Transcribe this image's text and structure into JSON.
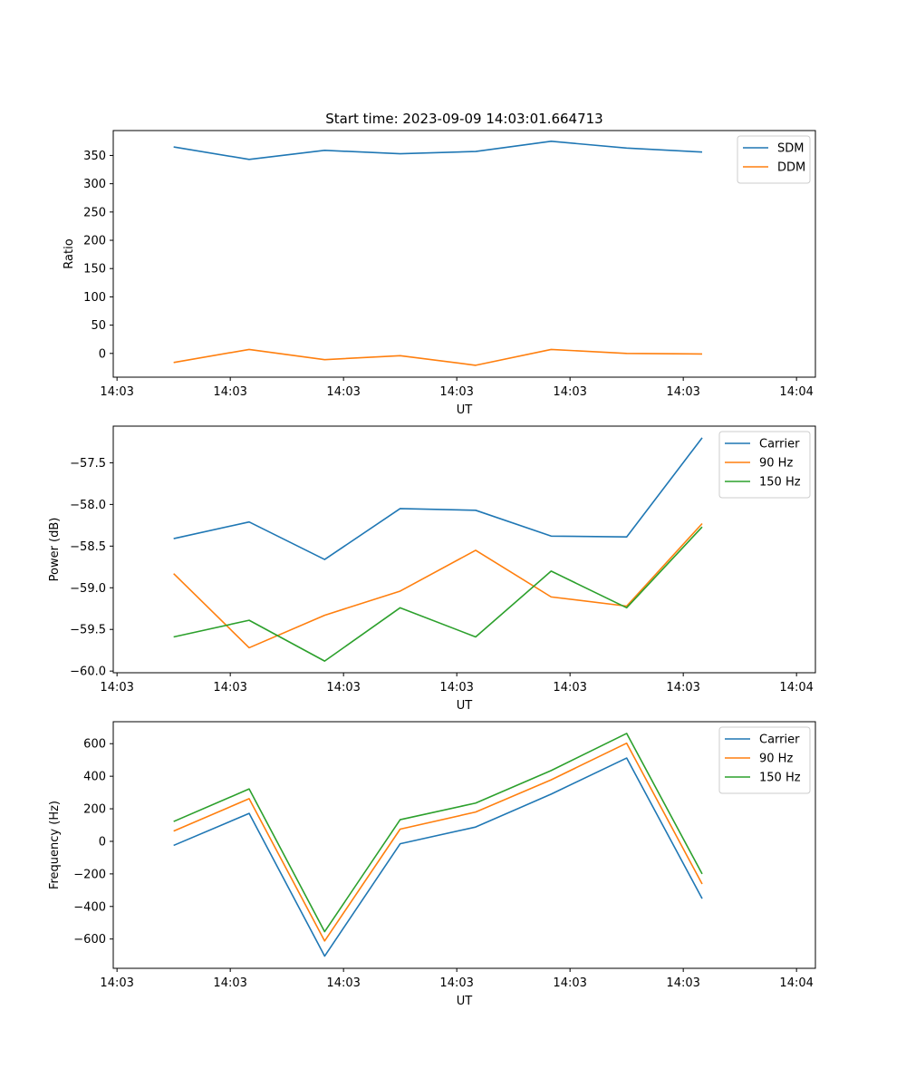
{
  "figure": {
    "title": "Start time: 2023-09-09 14:03:01.664713"
  },
  "colors": {
    "blue": "#1f77b4",
    "orange": "#ff7f0e",
    "green": "#2ca02c"
  },
  "chart_data": [
    {
      "type": "line",
      "title": "Start time: 2023-09-09 14:03:01.664713",
      "xlabel": "UT",
      "ylabel": "Ratio",
      "x": [
        1,
        2,
        3,
        4,
        5,
        6,
        7,
        8
      ],
      "xlim": [
        0.2,
        9.5
      ],
      "xticks": [
        0.25,
        1.75,
        3.25,
        4.75,
        6.25,
        7.75,
        9.25
      ],
      "xtick_labels": [
        "14:03",
        "14:03",
        "14:03",
        "14:03",
        "14:03",
        "14:03",
        "14:04"
      ],
      "ylim": [
        -42,
        394
      ],
      "yticks": [
        0,
        50,
        100,
        150,
        200,
        250,
        300,
        350
      ],
      "ytick_labels": [
        "0",
        "50",
        "100",
        "150",
        "200",
        "250",
        "300",
        "350"
      ],
      "legend": "top-right",
      "series": [
        {
          "name": "SDM",
          "color": "#1f77b4",
          "values": [
            365,
            343,
            359,
            353,
            357,
            375,
            363,
            356
          ]
        },
        {
          "name": "DDM",
          "color": "#ff7f0e",
          "values": [
            -16,
            7,
            -11,
            -4,
            -21,
            7,
            0,
            -1
          ]
        }
      ]
    },
    {
      "type": "line",
      "xlabel": "UT",
      "ylabel": "Power (dB)",
      "x": [
        1,
        2,
        3,
        4,
        5,
        6,
        7,
        8
      ],
      "xlim": [
        0.2,
        9.5
      ],
      "xticks": [
        0.25,
        1.75,
        3.25,
        4.75,
        6.25,
        7.75,
        9.25
      ],
      "xtick_labels": [
        "14:03",
        "14:03",
        "14:03",
        "14:03",
        "14:03",
        "14:03",
        "14:04"
      ],
      "ylim": [
        -60.02,
        -57.06
      ],
      "yticks": [
        -60.0,
        -59.5,
        -59.0,
        -58.5,
        -58.0,
        -57.5
      ],
      "ytick_labels": [
        "−60.0",
        "−59.5",
        "−59.0",
        "−58.5",
        "−58.0",
        "−57.5"
      ],
      "legend": "top-right",
      "series": [
        {
          "name": "Carrier",
          "color": "#1f77b4",
          "values": [
            -58.41,
            -58.21,
            -58.66,
            -58.05,
            -58.07,
            -58.38,
            -58.39,
            -57.2
          ]
        },
        {
          "name": "90 Hz",
          "color": "#ff7f0e",
          "values": [
            -58.83,
            -59.72,
            -59.33,
            -59.04,
            -58.55,
            -59.11,
            -59.22,
            -58.23
          ]
        },
        {
          "name": "150 Hz",
          "color": "#2ca02c",
          "values": [
            -59.59,
            -59.39,
            -59.88,
            -59.24,
            -59.59,
            -58.8,
            -59.24,
            -58.27
          ]
        }
      ]
    },
    {
      "type": "line",
      "xlabel": "UT",
      "ylabel": "Frequency (Hz)",
      "x": [
        1,
        2,
        3,
        4,
        5,
        6,
        7,
        8
      ],
      "xlim": [
        0.2,
        9.5
      ],
      "xticks": [
        0.25,
        1.75,
        3.25,
        4.75,
        6.25,
        7.75,
        9.25
      ],
      "xtick_labels": [
        "14:03",
        "14:03",
        "14:03",
        "14:03",
        "14:03",
        "14:03",
        "14:04"
      ],
      "ylim": [
        -780,
        735
      ],
      "yticks": [
        -600,
        -400,
        -200,
        0,
        200,
        400,
        600
      ],
      "ytick_labels": [
        "−600",
        "−400",
        "−200",
        "0",
        "200",
        "400",
        "600"
      ],
      "legend": "top-right",
      "series": [
        {
          "name": "Carrier",
          "color": "#1f77b4",
          "values": [
            -25,
            172,
            -705,
            -15,
            88,
            290,
            512,
            -352
          ]
        },
        {
          "name": "90 Hz",
          "color": "#ff7f0e",
          "values": [
            63,
            262,
            -612,
            75,
            180,
            378,
            603,
            -262
          ]
        },
        {
          "name": "150 Hz",
          "color": "#2ca02c",
          "values": [
            122,
            322,
            -555,
            133,
            235,
            435,
            663,
            -200
          ]
        }
      ]
    }
  ]
}
